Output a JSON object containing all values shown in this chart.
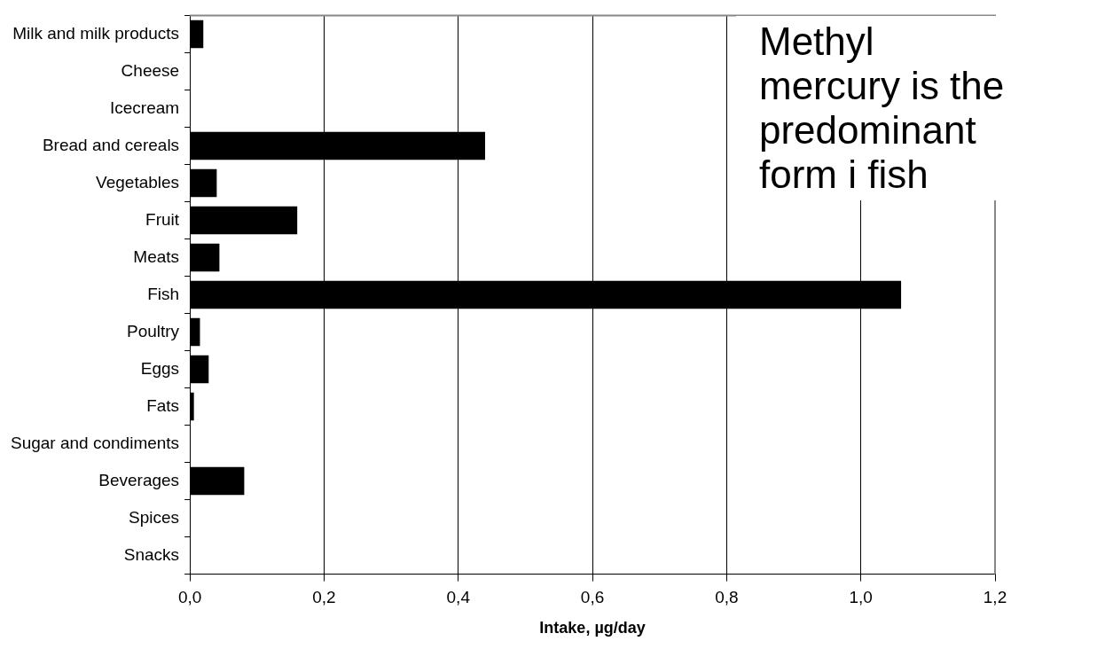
{
  "chart_data": {
    "type": "bar",
    "orientation": "horizontal",
    "categories": [
      "Milk and milk products",
      "Cheese",
      "Icecream",
      "Bread and cereals",
      "Vegetables",
      "Fruit",
      "Meats",
      "Fish",
      "Poultry",
      "Eggs",
      "Fats",
      "Sugar and condiments",
      "Beverages",
      "Spices",
      "Snacks"
    ],
    "values": [
      0.02,
      0,
      0,
      0.44,
      0.04,
      0.16,
      0.044,
      1.06,
      0.015,
      0.028,
      0.006,
      0,
      0.081,
      0,
      0
    ],
    "color": "#000000",
    "xlabel": "Intake, µg/day",
    "xlim": [
      0,
      1.2
    ],
    "xticks": [
      {
        "value": 0,
        "label": "0,0"
      },
      {
        "value": 0.2,
        "label": "0,2"
      },
      {
        "value": 0.4,
        "label": "0,4"
      },
      {
        "value": 0.6,
        "label": "0,6"
      },
      {
        "value": 0.8,
        "label": "0,8"
      },
      {
        "value": 1,
        "label": "1,0"
      },
      {
        "value": 1.2,
        "label": "1,2"
      }
    ],
    "grid": "x",
    "annotations": [
      "Methyl mercury is the predominant form i fish"
    ]
  }
}
